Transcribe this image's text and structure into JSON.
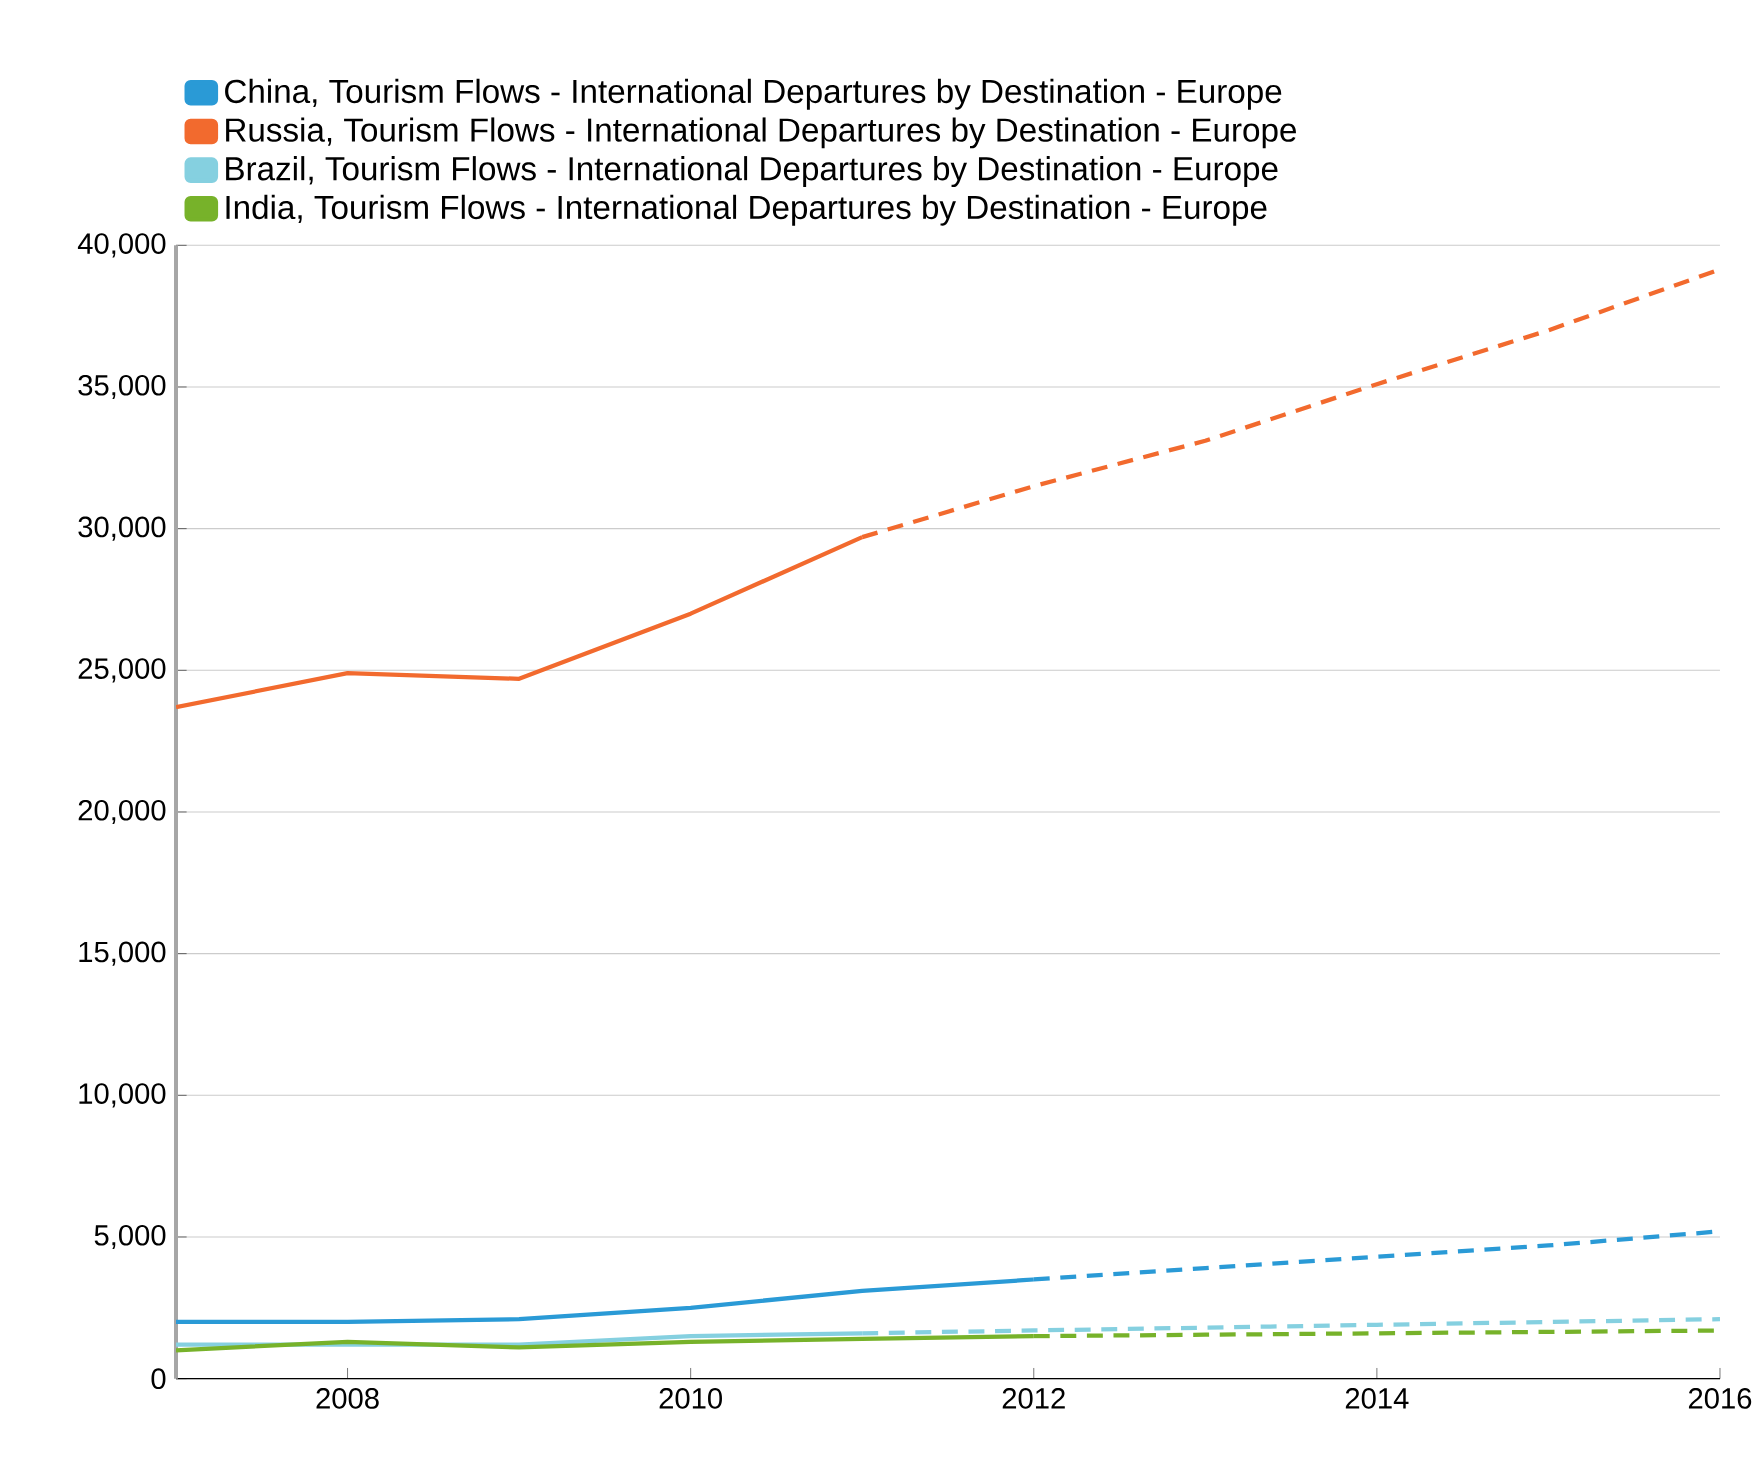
{
  "chart_data": {
    "type": "line",
    "legend": "top left",
    "grid": "y",
    "marker": "none",
    "x": [
      2007,
      2008,
      2009,
      2010,
      2011,
      2012,
      2013,
      2014,
      2015,
      2016
    ],
    "xlim": [
      2007,
      2016
    ],
    "xticks": [
      2008,
      2010,
      2012,
      2014,
      2016
    ],
    "ylim": [
      0,
      40000
    ],
    "yticks": [
      0,
      {
        "value": 5000,
        "label": "5,000"
      },
      {
        "value": 10000,
        "label": "10,000"
      },
      {
        "value": 15000,
        "label": "15,000"
      },
      {
        "value": 20000,
        "label": "20,000"
      },
      {
        "value": 25000,
        "label": "25,000"
      },
      {
        "value": 30000,
        "label": "30,000"
      },
      {
        "value": 35000,
        "label": "35,000"
      },
      {
        "value": 40000,
        "label": "40,000"
      }
    ],
    "series": [
      {
        "name": "China, Tourism Flows - International Departures by Destination - Europe",
        "color": "#2a9ad6",
        "line_style": "solid",
        "values": [
          2000,
          2000,
          2100,
          2500,
          3100,
          3500,
          null,
          null,
          null,
          null
        ]
      },
      {
        "name": "Russia, Tourism Flows - International Departures by Destination - Europe",
        "color": "#f26a2e",
        "line_style": "solid",
        "values": [
          23700,
          24900,
          24700,
          27000,
          29700,
          null,
          null,
          null,
          null,
          null
        ]
      },
      {
        "name": "Brazil, Tourism Flows - International Departures by Destination - Europe",
        "color": "#85d0e0",
        "line_style": "solid",
        "values": [
          1200,
          1200,
          1200,
          1500,
          1600,
          null,
          null,
          null,
          null,
          null
        ]
      },
      {
        "name": "India, Tourism Flows - International Departures by Destination - Europe",
        "color": "#77b22a",
        "line_style": "solid",
        "values": [
          1000,
          1300,
          1100,
          1300,
          1400,
          1500,
          null,
          null,
          null,
          null
        ]
      },
      {
        "color": "#2a9ad6",
        "line_style": "dashed",
        "values": [
          null,
          null,
          null,
          null,
          null,
          3500,
          3900,
          4300,
          4700,
          5200
        ]
      },
      {
        "color": "#f26a2e",
        "line_style": "dashed",
        "values": [
          null,
          null,
          null,
          null,
          29700,
          31500,
          33100,
          35100,
          37000,
          39150
        ]
      },
      {
        "color": "#85d0e0",
        "line_style": "dashed",
        "values": [
          null,
          null,
          null,
          null,
          1600,
          1700,
          1800,
          1900,
          2000,
          2100
        ]
      },
      {
        "color": "#77b22a",
        "line_style": "dashed",
        "values": [
          null,
          null,
          null,
          null,
          null,
          1500,
          1550,
          1600,
          1650,
          1700
        ]
      }
    ]
  }
}
